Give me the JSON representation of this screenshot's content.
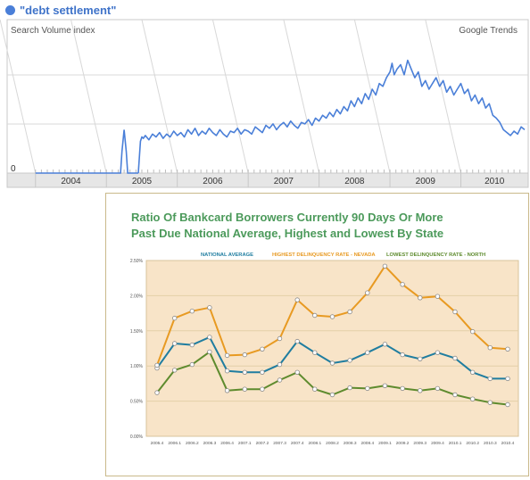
{
  "header": {
    "query_label": "\"debt settlement\"",
    "accent_color": "#4a7fd8"
  },
  "chart_data": [
    {
      "type": "line",
      "ylabel": "Search Volume index",
      "brand": "Google Trends",
      "ytick_labels": [
        "0"
      ],
      "ylim": [
        0,
        100
      ],
      "xlim": [
        2003.6,
        2010.95
      ],
      "year_labels": [
        "2004",
        "2005",
        "2006",
        "2007",
        "2008",
        "2009",
        "2010"
      ],
      "x": [
        2005.45,
        2005.48,
        2005.5,
        2005.52,
        2005.55,
        2005.6,
        2005.65,
        2005.7,
        2005.75,
        2005.8,
        2005.85,
        2005.9,
        2005.95,
        2006.0,
        2006.05,
        2006.1,
        2006.15,
        2006.2,
        2006.25,
        2006.3,
        2006.35,
        2006.4,
        2006.45,
        2006.5,
        2006.55,
        2006.6,
        2006.65,
        2006.7,
        2006.75,
        2006.8,
        2006.85,
        2006.9,
        2006.95,
        2007.0,
        2007.05,
        2007.1,
        2007.15,
        2007.2,
        2007.25,
        2007.3,
        2007.35,
        2007.4,
        2007.45,
        2007.5,
        2007.55,
        2007.6,
        2007.65,
        2007.7,
        2007.75,
        2007.8,
        2007.85,
        2007.9,
        2007.95,
        2008.0,
        2008.05,
        2008.1,
        2008.15,
        2008.2,
        2008.25,
        2008.3,
        2008.35,
        2008.4,
        2008.45,
        2008.5,
        2008.55,
        2008.6,
        2008.65,
        2008.7,
        2008.75,
        2008.8,
        2008.85,
        2008.9,
        2008.95,
        2009.0,
        2009.03,
        2009.06,
        2009.1,
        2009.15,
        2009.2,
        2009.25,
        2009.3,
        2009.35,
        2009.4,
        2009.45,
        2009.5,
        2009.55,
        2009.6,
        2009.65,
        2009.7,
        2009.75,
        2009.8,
        2009.85,
        2009.9,
        2009.95,
        2010.0,
        2010.05,
        2010.1,
        2010.15,
        2010.2,
        2010.25,
        2010.3,
        2010.35,
        2010.4,
        2010.45,
        2010.5,
        2010.55,
        2010.6,
        2010.65,
        2010.7,
        2010.75,
        2010.8,
        2010.85,
        2010.9
      ],
      "series": [
        {
          "name": "\"debt settlement\"",
          "color": "#4a7fd8",
          "pre_segment": {
            "x": [
              2004.0,
              2005.2,
              2005.22,
              2005.25,
              2005.28,
              2005.3,
              2005.45
            ],
            "y": [
              0,
              0,
              15,
              30,
              15,
              0,
              0
            ]
          },
          "values": [
            0,
            22,
            25,
            24,
            26,
            23,
            27,
            25,
            28,
            24,
            27,
            25,
            29,
            26,
            28,
            25,
            30,
            27,
            31,
            26,
            29,
            27,
            31,
            28,
            26,
            30,
            27,
            25,
            29,
            28,
            31,
            27,
            30,
            29,
            27,
            32,
            30,
            28,
            33,
            31,
            34,
            30,
            33,
            35,
            32,
            36,
            33,
            31,
            35,
            34,
            37,
            33,
            38,
            36,
            40,
            38,
            42,
            39,
            44,
            41,
            46,
            43,
            50,
            46,
            52,
            48,
            55,
            51,
            58,
            54,
            62,
            60,
            66,
            70,
            76,
            68,
            72,
            75,
            68,
            78,
            72,
            66,
            70,
            60,
            64,
            58,
            62,
            66,
            60,
            64,
            56,
            60,
            54,
            58,
            62,
            55,
            58,
            50,
            54,
            48,
            52,
            45,
            48,
            40,
            38,
            35,
            30,
            28,
            26,
            29,
            27,
            32,
            30
          ]
        }
      ]
    },
    {
      "type": "line",
      "title_lines": [
        "Ratio Of Bankcard Borrowers Currently 90 Days Or More",
        "Past Due National Average, Highest and Lowest By State"
      ],
      "categories": [
        "2005.4",
        "2006.1",
        "2006.2",
        "2006.3",
        "2006.4",
        "2007.1",
        "2007.2",
        "2007.3",
        "2007.4",
        "2008.1",
        "2008.2",
        "2008.3",
        "2008.4",
        "2009.1",
        "2009.2",
        "2009.3",
        "2009.4",
        "2010.1",
        "2010.2",
        "2010.3",
        "2010.4"
      ],
      "ylim": [
        0,
        2.5
      ],
      "ytick_labels": [
        "0.00%",
        "0.50%",
        "1.00%",
        "1.50%",
        "2.00%",
        "2.50%"
      ],
      "legend_position": "top",
      "series": [
        {
          "name": "NATIONAL AVERAGE",
          "color": "#1f7da0",
          "values": [
            0.97,
            1.32,
            1.3,
            1.41,
            0.93,
            0.91,
            0.91,
            1.02,
            1.35,
            1.19,
            1.04,
            1.08,
            1.19,
            1.31,
            1.16,
            1.1,
            1.19,
            1.11,
            0.91,
            0.82,
            0.82
          ]
        },
        {
          "name": "HIGHEST DELINQUENCY RATE - NEVADA",
          "color": "#e89a22",
          "values": [
            1.01,
            1.68,
            1.78,
            1.83,
            1.15,
            1.16,
            1.24,
            1.39,
            1.94,
            1.72,
            1.7,
            1.77,
            2.04,
            2.42,
            2.16,
            1.97,
            1.99,
            1.77,
            1.49,
            1.26,
            1.24
          ]
        },
        {
          "name": "LOWEST DELINQUENCY RATE - NORTH",
          "color": "#5e8b2e",
          "values": [
            0.62,
            0.94,
            1.02,
            1.2,
            0.65,
            0.67,
            0.67,
            0.8,
            0.91,
            0.67,
            0.59,
            0.69,
            0.68,
            0.72,
            0.68,
            0.65,
            0.68,
            0.59,
            0.53,
            0.48,
            0.45
          ]
        }
      ]
    }
  ]
}
